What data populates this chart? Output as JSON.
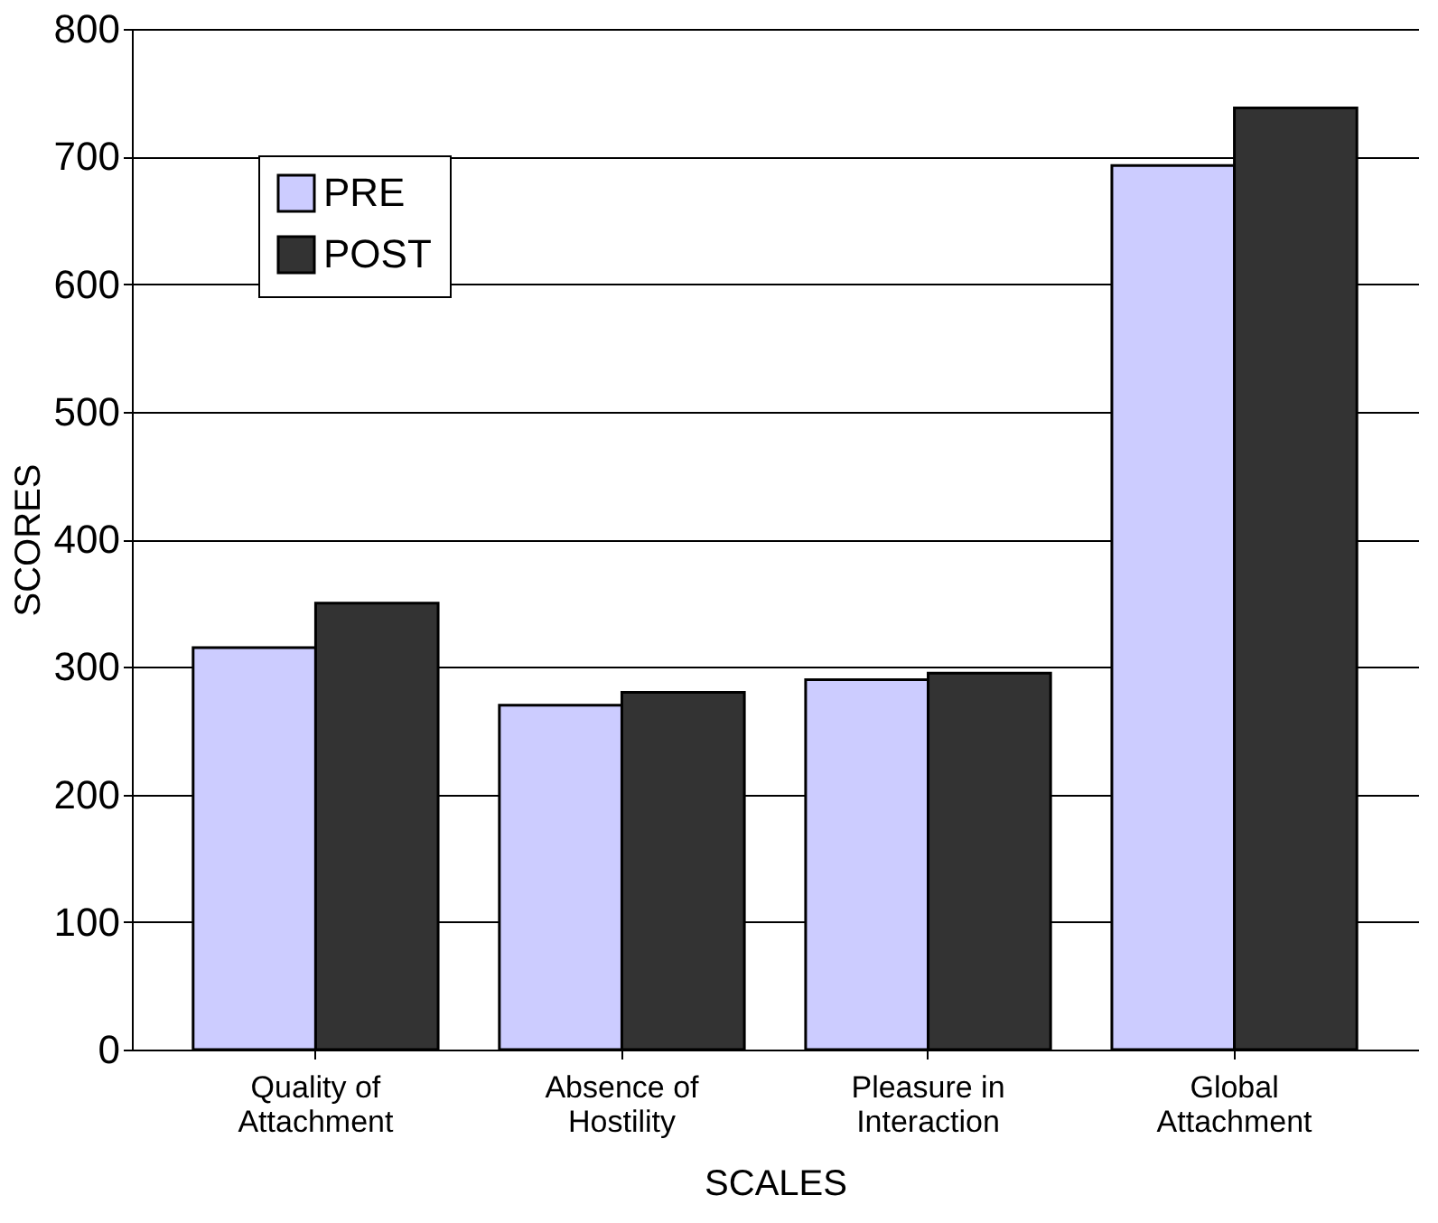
{
  "chart_data": {
    "type": "bar",
    "xlabel": "SCALES",
    "ylabel": "SCORES",
    "categories": [
      "Quality of Attachment",
      "Absence of Hostility",
      "Pleasure in Interaction",
      "Global Attachment"
    ],
    "series": [
      {
        "name": "PRE",
        "color": "#ccccff",
        "values": [
          315,
          270,
          290,
          693
        ]
      },
      {
        "name": "POST",
        "color": "#333333",
        "values": [
          350,
          280,
          295,
          738
        ]
      }
    ],
    "ylim": [
      0,
      800
    ],
    "yticks": [
      0,
      100,
      200,
      300,
      400,
      500,
      600,
      700,
      800
    ],
    "grid": "y",
    "legend": "top left"
  }
}
